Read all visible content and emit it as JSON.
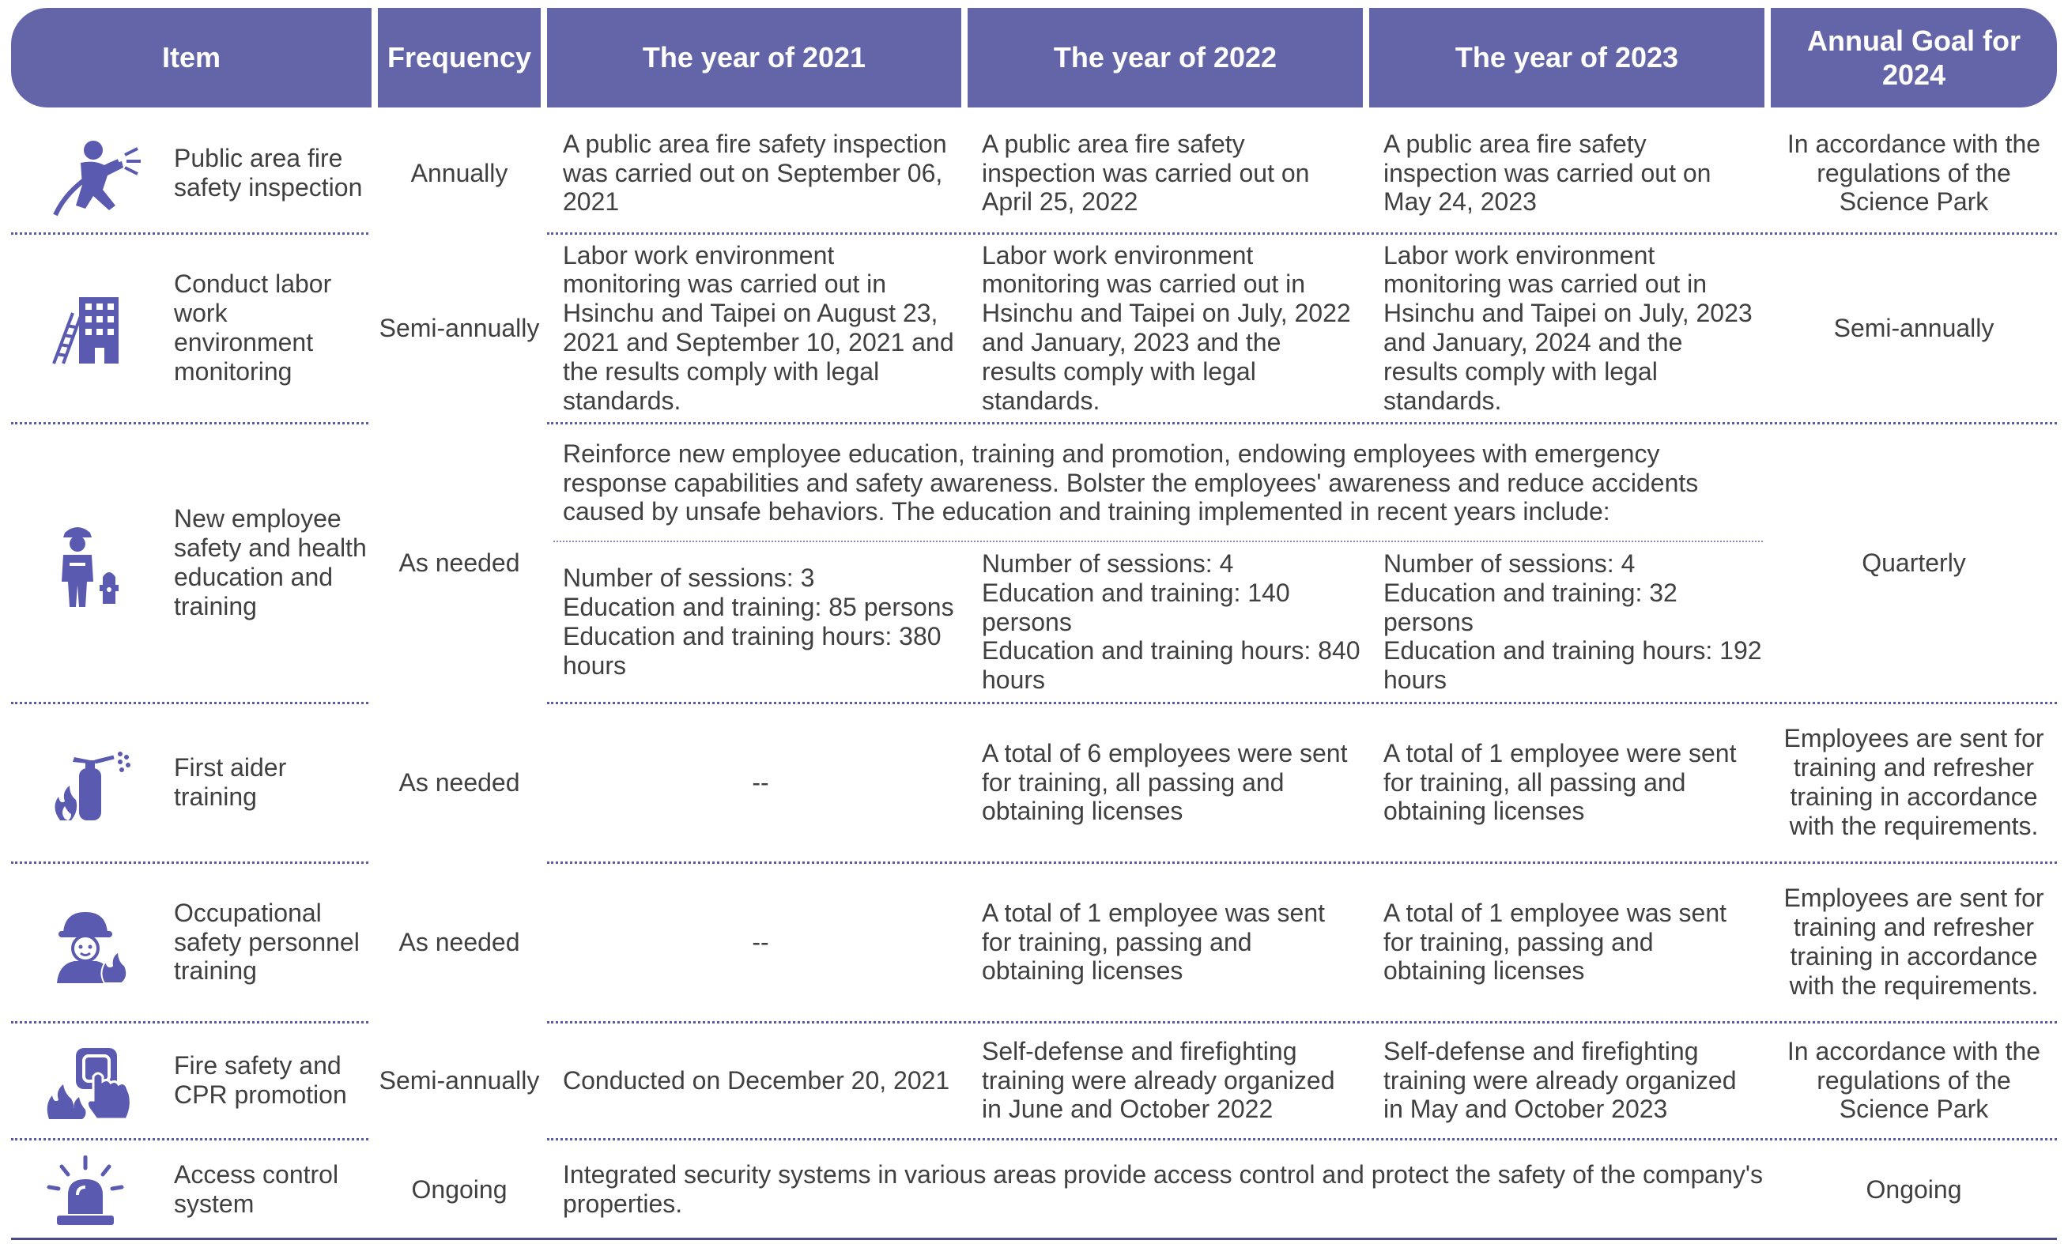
{
  "colors": {
    "header_bg": "#6464a8",
    "icon": "#5a5ab0",
    "text": "#404040"
  },
  "header": {
    "item": "Item",
    "frequency": "Frequency",
    "y2021": "The year of 2021",
    "y2022": "The year of 2022",
    "y2023": "The year of 2023",
    "goal": "Annual Goal for 2024"
  },
  "rows": [
    {
      "icon": "firefighter-hose-icon",
      "item": "Public area fire safety inspection",
      "frequency": "Annually",
      "y2021": "A public area fire safety inspection was carried out on September 06, 2021",
      "y2022": "A public area fire safety inspection was carried out on April 25, 2022",
      "y2023": "A public area fire safety inspection was carried out on May 24, 2023",
      "goal": "In accordance with the regulations of the Science Park"
    },
    {
      "icon": "building-ladder-icon",
      "item": "Conduct labor work environment monitoring",
      "frequency": "Semi-annually",
      "y2021": "Labor work environment monitoring was carried out in Hsinchu and Taipei on August 23, 2021 and September 10, 2021 and the results comply with legal standards.",
      "y2022": "Labor work environment monitoring was carried out in Hsinchu and Taipei on July, 2022 and January, 2023 and the results comply with legal standards.",
      "y2023": "Labor work environment monitoring was carried out in Hsinchu and Taipei on July, 2023 and January, 2024 and the results comply with legal standards.",
      "goal": "Semi-annually"
    },
    {
      "icon": "firefighter-hydrant-icon",
      "item": "New employee safety and health education and training",
      "frequency": "As needed",
      "intro": "Reinforce new employee education, training and promotion, endowing employees with emergency response capabilities and safety awareness. Bolster the employees' awareness and reduce accidents caused by unsafe behaviors. The education and training implemented in recent years include:",
      "y2021": "Number of sessions: 3\nEducation and training: 85 persons\nEducation and training hours: 380 hours",
      "y2022": "Number of sessions: 4\nEducation and training: 140 persons\nEducation and training hours: 840 hours",
      "y2023": "Number of sessions: 4\nEducation and training: 32 persons\nEducation and training hours: 192 hours",
      "goal": "Quarterly"
    },
    {
      "icon": "fire-extinguisher-icon",
      "item": "First aider training",
      "frequency": "As needed",
      "y2021": "--",
      "y2022": "A total of 6 employees were sent for training, all passing and obtaining licenses",
      "y2023": "A total of 1 employee were sent for training, all passing and obtaining licenses",
      "goal": "Employees are sent for training and refresher training in accordance with the requirements."
    },
    {
      "icon": "firefighter-person-icon",
      "item": "Occupational safety personnel training",
      "frequency": "As needed",
      "y2021": "--",
      "y2022": "A total of 1 employee was sent for training, passing and obtaining licenses",
      "y2023": "A total of 1 employee was sent for training, passing and obtaining licenses",
      "goal": "Employees are sent for training and refresher training in accordance with the requirements."
    },
    {
      "icon": "fire-alarm-button-icon",
      "item": "Fire safety and CPR promotion",
      "frequency": "Semi-annually",
      "y2021": "Conducted on December 20, 2021",
      "y2022": "Self-defense and firefighting training were already organized in June and October 2022",
      "y2023": "Self-defense and firefighting training were already organized in May and October 2023",
      "goal": "In accordance with the regulations of the Science Park"
    },
    {
      "icon": "alarm-siren-icon",
      "item": "Access control system",
      "frequency": "Ongoing",
      "span": "Integrated security systems in various areas provide access control and protect the safety of the company's properties.",
      "goal": "Ongoing"
    }
  ]
}
